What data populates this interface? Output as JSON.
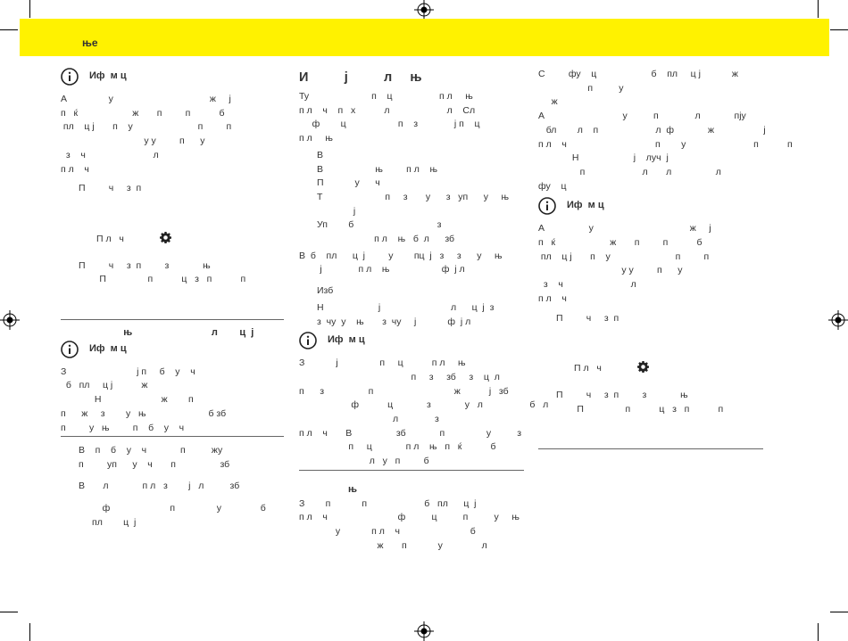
{
  "banner": {
    "title": "ње"
  },
  "col1": {
    "info1": {
      "title": "Иф  м ц",
      "lines": [
        "А                у                                     ж     ј",
        "п   ќ                     ж       п         п           б",
        " пл    ц ј       п    у                         п         п",
        "                                у у         п      у",
        "  з    ч                          л",
        "п л    ч"
      ]
    },
    "step1": "П         ч     з  п",
    "settings_label": "П л   ч",
    "step2": [
      "П         ч     з  п         з             њ",
      "        П                п           ц   з   п           п"
    ],
    "subhead": "                       њ                             л        ц  ј",
    "info2": {
      "title": "Иф  м ц",
      "lines": [
        "З                           ј п     б    у    ч",
        "  б   пл     ц ј           ж",
        "             Н                       ж        п",
        "п      ж     з        у   њ                        б зб",
        "п         у   њ         п    б    у    ч"
      ]
    },
    "bullets": [
      "В    п    б    у    ч             п          жу",
      "п         уп      у    ч       п                 зб"
    ],
    "bullet3": "В       л             п л   з        ј   л          зб",
    "tail": [
      "                ф                       п                у               б",
      "            пл        ц  ј"
    ]
  },
  "col2": {
    "heading": "И          ј          л     њ",
    "intro": [
      "Ту                        п    ц                  п л     њ",
      "п л    ч    п   х           л                      л    Сл",
      "     ф        ц                    п    з              ј п    ц",
      "п л     њ"
    ],
    "list": [
      "В",
      "В                    њ         п л    њ",
      "П            у      ч",
      "Т                        п     з       у      з   уп      у     њ",
      "              ј",
      "Уп        б                                з",
      "                      п л    њ   б  л      зб"
    ],
    "para2": [
      "В  б    пл      ц  ј         у        пц  ј   з     з      у     њ",
      "        ј              п л    њ                    ф  ј л"
    ],
    "list2": [
      "Изб",
      "Н                     ј                           л      ц  ј  з",
      "з  чу  у    њ       з  чу     ј            ф  ј л"
    ],
    "info": {
      "title": "Иф  м ц"
    },
    "para3": [
      "З            ј                п     ц           п л     њ",
      "                                           п     з     зб     з    ц  л",
      "п      з                 п                               ж           ј   зб",
      "                    ф           ц             з             у   л                  б   л",
      "                                    л              з",
      "п л    ч       В                 зб             п                у          з",
      "                   п     ц             п л    њ   п   ќ           б",
      "                           л   у   п         б"
    ],
    "subhead": "                  њ",
    "tail": [
      "З        п            п                      б   пл      ц  ј",
      "п л    ч                           ф          ц          п          у     њ",
      "              у            п л    ч                           б",
      "                              ж       п            у               л"
    ]
  },
  "col3": {
    "intro": [
      "С         фу    ц                     б    пл     ц ј            ж",
      "                   п          у",
      "     ж",
      "А                              у          п              л             пју",
      "   бл        л    п                      л  ф             ж                   ј",
      "п л    ч                                  п        у                          п           п",
      "             Н                     ј    луч  ј",
      "                п                      л       л                 л",
      "фу    ц"
    ],
    "info": {
      "title": "Иф  м ц",
      "lines": [
        "А                 у                                     ж     ј",
        "п   ќ                     ж       п         п           б",
        " пл    ц ј       п    у                         п         п",
        "                                у у         п      у",
        "  з    ч                          л",
        "п л    ч"
      ]
    },
    "step1": "П         ч     з  п",
    "settings_label": "П л   ч",
    "step2": [
      "П         ч     з  п         з             њ",
      "        П                п           ц   з   п           п"
    ]
  }
}
